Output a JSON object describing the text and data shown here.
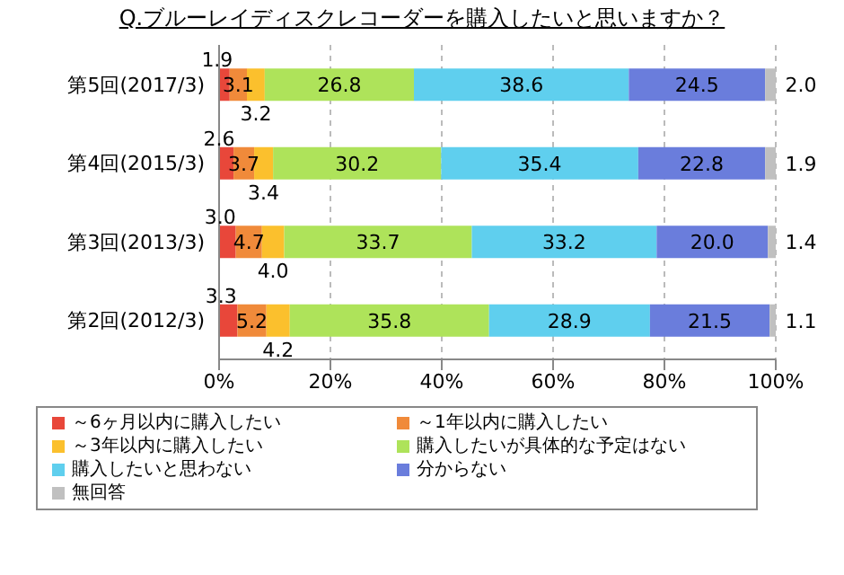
{
  "chart_data": {
    "type": "bar",
    "orientation": "horizontal",
    "stacked": true,
    "title": "Q.ブルーレイディスクレコーダーを購入したいと思いますか？",
    "categories": [
      "第5回(2017/3)",
      "第4回(2015/3)",
      "第3回(2013/3)",
      "第2回(2012/3)"
    ],
    "series": [
      {
        "name": "～6ヶ月以内に購入したい",
        "color": "#e8473a",
        "values": [
          1.9,
          2.6,
          3.0,
          3.3
        ],
        "value_labels": [
          "1.9",
          "2.6",
          "3.0",
          "3.3"
        ]
      },
      {
        "name": "～1年以内に購入したい",
        "color": "#f08a3a",
        "values": [
          3.1,
          3.7,
          4.7,
          5.2
        ],
        "value_labels": [
          "3.1",
          "3.7",
          "4.7",
          "5.2"
        ]
      },
      {
        "name": "～3年以内に購入したい",
        "color": "#fbc02d",
        "values": [
          3.2,
          3.4,
          4.0,
          4.2
        ],
        "value_labels": [
          "3.2",
          "3.4",
          "4.0",
          "4.2"
        ]
      },
      {
        "name": "購入したいが具体的な予定はない",
        "color": "#aee35a",
        "values": [
          26.8,
          30.2,
          33.7,
          35.8
        ],
        "value_labels": [
          "26.8",
          "30.2",
          "33.7",
          "35.8"
        ]
      },
      {
        "name": "購入したいと思わない",
        "color": "#5fcfee",
        "values": [
          38.6,
          35.4,
          33.2,
          28.9
        ],
        "value_labels": [
          "38.6",
          "35.4",
          "33.2",
          "28.9"
        ]
      },
      {
        "name": "分からない",
        "color": "#6a7ddc",
        "values": [
          24.5,
          22.8,
          20.0,
          21.5
        ],
        "value_labels": [
          "24.5",
          "22.8",
          "20.0",
          "21.5"
        ]
      },
      {
        "name": "無回答",
        "color": "#c0c0c0",
        "values": [
          2.0,
          1.9,
          1.4,
          1.1
        ],
        "value_labels": [
          "2.0",
          "1.9",
          "1.4",
          "1.1"
        ]
      }
    ],
    "xlim": [
      0,
      100
    ],
    "xticks": [
      {
        "value": 0,
        "label": "0%"
      },
      {
        "value": 20,
        "label": "20%"
      },
      {
        "value": 40,
        "label": "40%"
      },
      {
        "value": 60,
        "label": "60%"
      },
      {
        "value": 80,
        "label": "80%"
      },
      {
        "value": 100,
        "label": "100%"
      }
    ],
    "grid": "x",
    "legend": "bottom"
  }
}
